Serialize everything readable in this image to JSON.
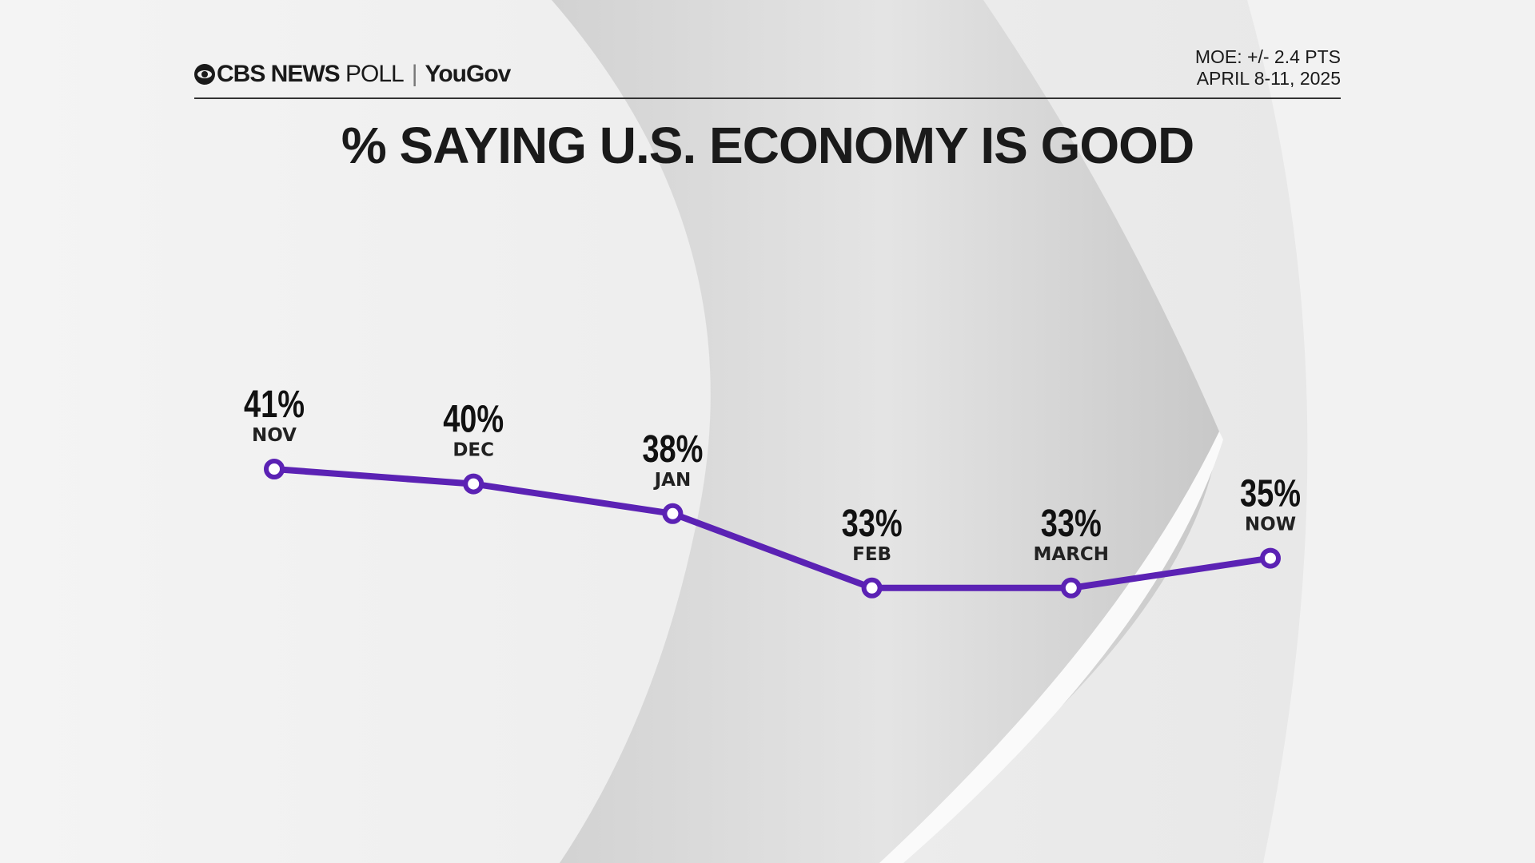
{
  "header": {
    "logo_text": "CBS NEWS",
    "logo_poll": "POLL",
    "logo_partner": "YouGov",
    "moe": "MOE: +/- 2.4 PTS",
    "dates": "APRIL 8-11, 2025"
  },
  "colors": {
    "line": "#5b22b4",
    "background": "#ececec"
  },
  "chart_data": {
    "type": "line",
    "title": "% SAYING U.S. ECONOMY IS GOOD",
    "categories": [
      "NOV",
      "DEC",
      "JAN",
      "FEB",
      "MARCH",
      "NOW"
    ],
    "values": [
      41,
      40,
      38,
      33,
      33,
      35
    ],
    "data_labels": [
      "41%",
      "40%",
      "38%",
      "33%",
      "33%",
      "35%"
    ],
    "grid": false,
    "legend": "none"
  }
}
